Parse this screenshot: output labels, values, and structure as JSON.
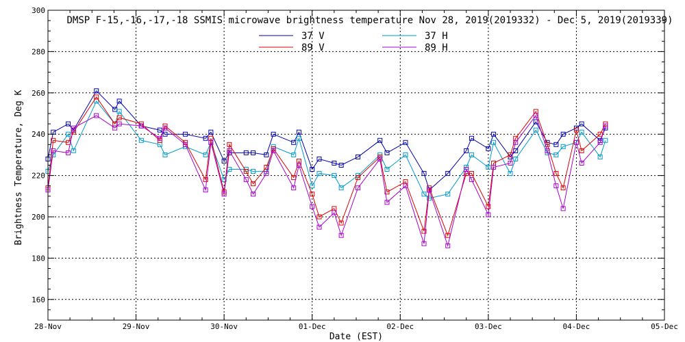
{
  "chart_data": {
    "type": "line",
    "title": "DMSP F-15,-16,-17,-18 SSMIS microwave brightness temperature Nov 28, 2019(2019332) - Dec  5, 2019(2019339)",
    "xlabel": "Date (EST)",
    "ylabel": "Brightness Temperature, Deg K",
    "xlim": [
      "28-Nov",
      "05-Dec"
    ],
    "ylim": [
      150,
      300
    ],
    "x_ticks": [
      "28-Nov",
      "29-Nov",
      "30-Nov",
      "01-Dec",
      "02-Dec",
      "03-Dec",
      "04-Dec",
      "05-Dec"
    ],
    "y_ticks": [
      "160",
      "180",
      "200",
      "220",
      "240",
      "260",
      "280",
      "300"
    ],
    "grid": true,
    "legend_placement": "top-center",
    "x_units": "days since 28-Nov 00:00 EST",
    "x": [
      0.0,
      0.06,
      0.23,
      0.29,
      0.55,
      0.76,
      0.81,
      1.06,
      1.27,
      1.33,
      1.56,
      1.79,
      1.85,
      2.0,
      2.06,
      2.25,
      2.33,
      2.48,
      2.56,
      2.79,
      2.85,
      3.0,
      3.08,
      3.25,
      3.33,
      3.52,
      3.77,
      3.85,
      4.06,
      4.27,
      4.33,
      4.54,
      4.75,
      4.81,
      5.0,
      5.06,
      5.25,
      5.31,
      5.54,
      5.67,
      5.77,
      5.85,
      6.0,
      6.06,
      6.27,
      6.33
    ],
    "series": [
      {
        "name": "37 V",
        "color": "#0000aa",
        "values": [
          228,
          241,
          245,
          242,
          261,
          252,
          256,
          244,
          242,
          240,
          240,
          238,
          241,
          227,
          231,
          231,
          231,
          230,
          240,
          236,
          241,
          223,
          228,
          226,
          225,
          229,
          237,
          231,
          236,
          221,
          213,
          221,
          232,
          238,
          233,
          240,
          229,
          232,
          246,
          236,
          235,
          240,
          243,
          245,
          237,
          243
        ]
      },
      {
        "name": "37 H",
        "color": "#0099cc",
        "values": [
          222,
          230,
          240,
          232,
          256,
          245,
          251,
          237,
          235,
          230,
          234,
          230,
          236,
          218,
          223,
          223,
          222,
          222,
          234,
          230,
          238,
          215,
          221,
          220,
          214,
          220,
          230,
          223,
          230,
          211,
          209,
          211,
          224,
          230,
          224,
          236,
          221,
          228,
          242,
          231,
          230,
          234,
          236,
          241,
          229,
          237
        ]
      },
      {
        "name": "89 V",
        "color": "#dd0000",
        "values": [
          214,
          237,
          236,
          241,
          258,
          245,
          248,
          245,
          237,
          244,
          236,
          218,
          238,
          212,
          235,
          222,
          216,
          224,
          233,
          219,
          227,
          211,
          200,
          204,
          197,
          219,
          229,
          212,
          217,
          193,
          214,
          191,
          221,
          221,
          205,
          226,
          230,
          238,
          251,
          235,
          221,
          214,
          242,
          232,
          240,
          245
        ]
      },
      {
        "name": "89 H",
        "color": "#aa00cc",
        "values": [
          213,
          232,
          231,
          243,
          249,
          243,
          245,
          244,
          238,
          243,
          235,
          213,
          236,
          211,
          232,
          218,
          211,
          221,
          232,
          214,
          225,
          205,
          195,
          202,
          191,
          214,
          228,
          207,
          215,
          187,
          213,
          186,
          223,
          218,
          201,
          224,
          226,
          236,
          249,
          232,
          215,
          204,
          236,
          226,
          236,
          244
        ]
      }
    ]
  }
}
